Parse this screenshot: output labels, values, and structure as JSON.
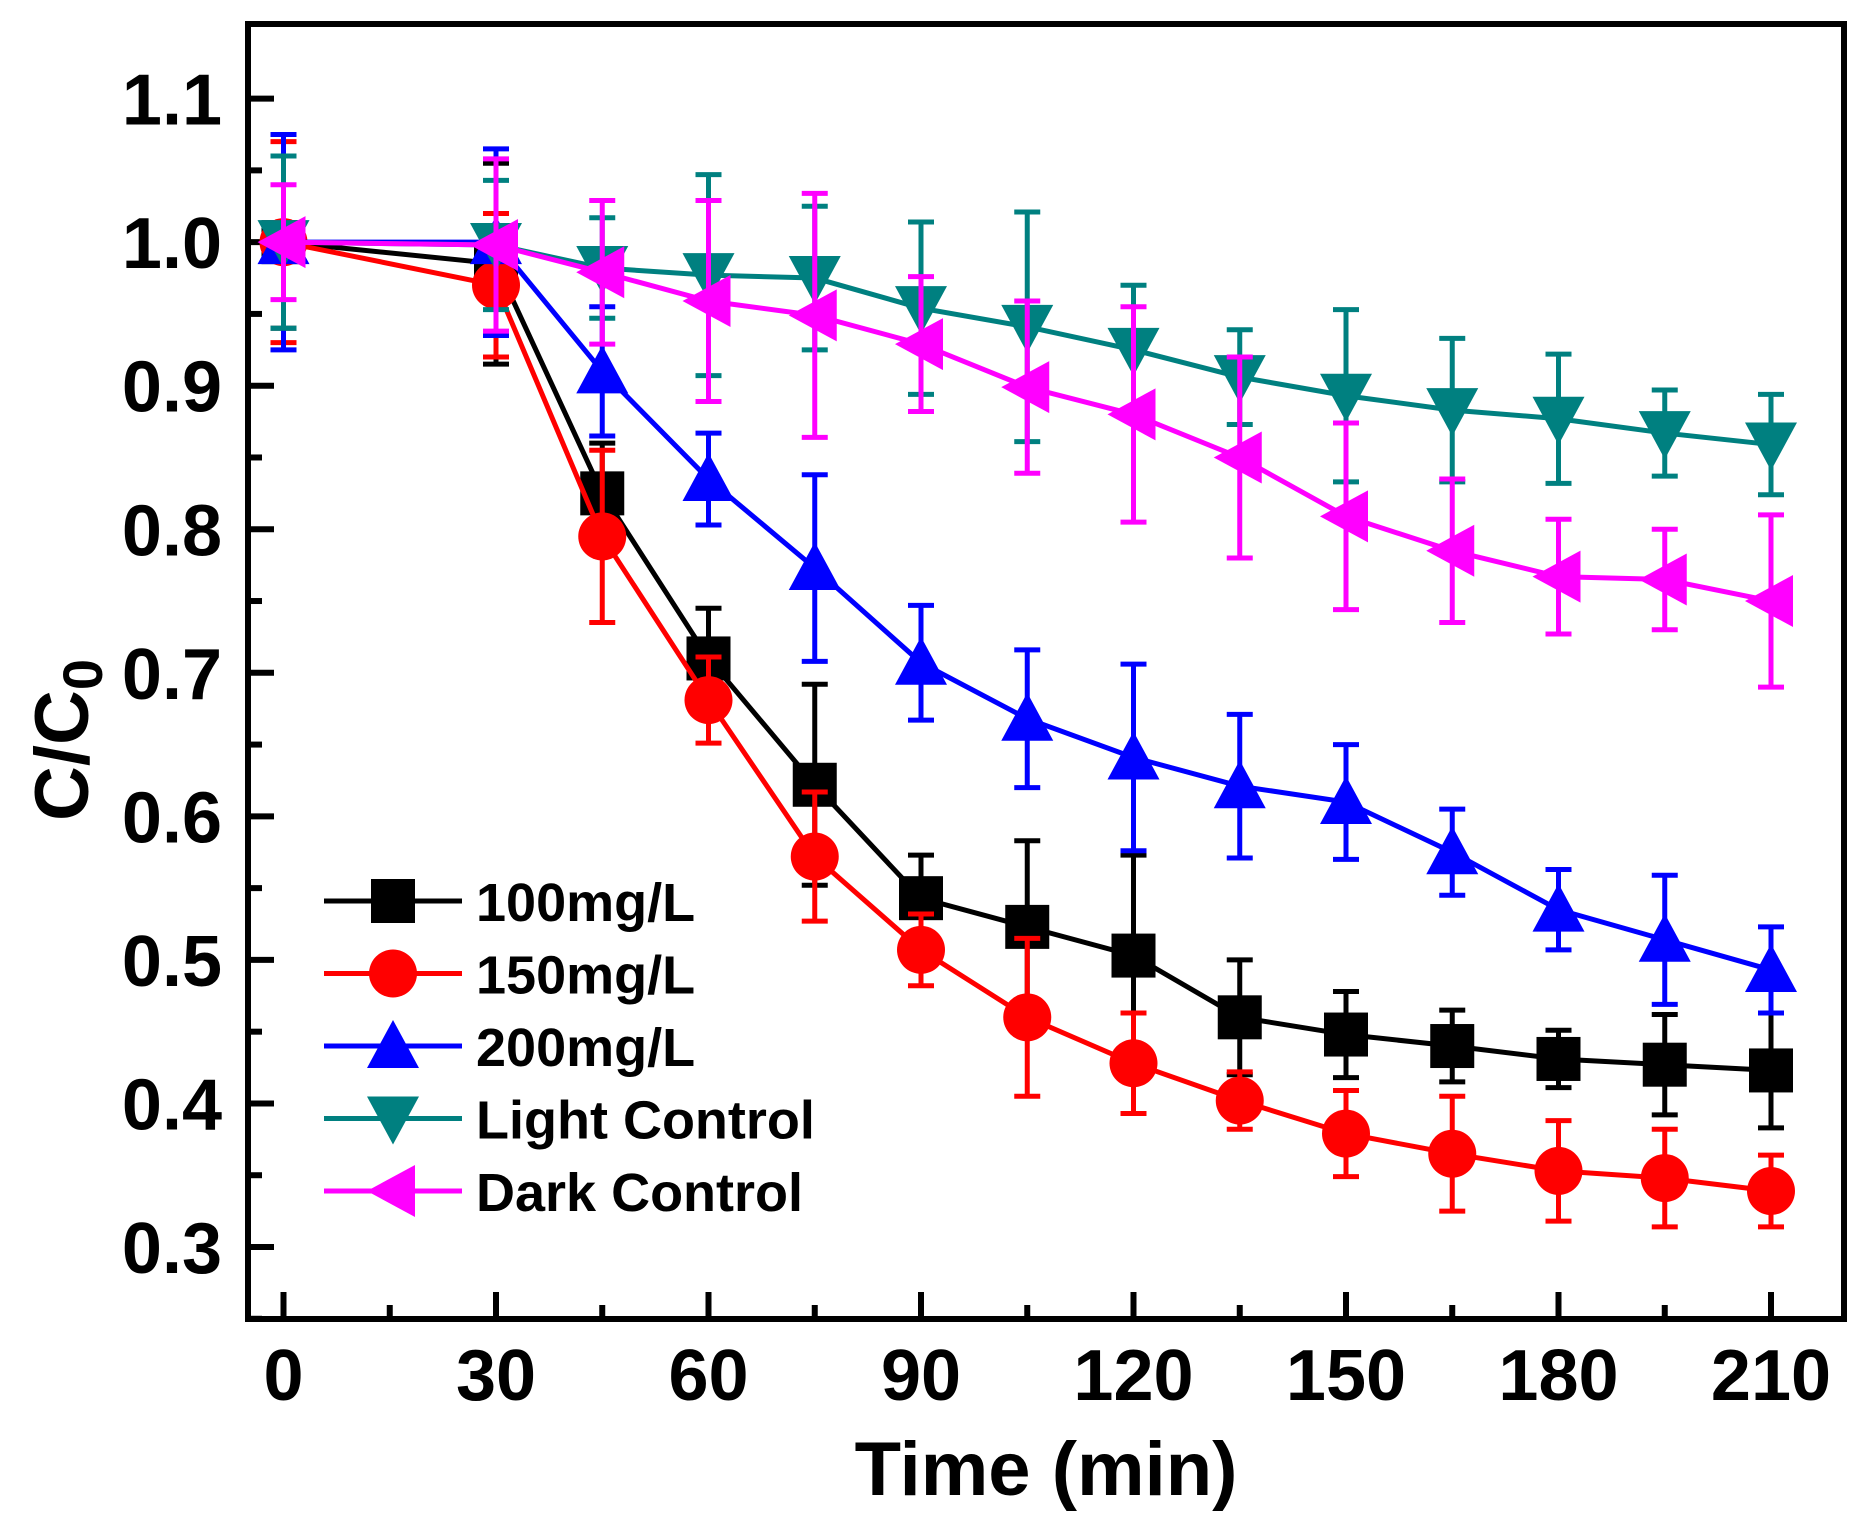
{
  "chart_data": {
    "type": "line",
    "title": "",
    "xlabel": "Time (min)",
    "ylabel_main": "C/C",
    "ylabel_sub": "0",
    "xlim": [
      -5,
      220
    ],
    "ylim": [
      0.25,
      1.14
    ],
    "xticks": [
      0,
      30,
      60,
      90,
      120,
      150,
      180,
      210
    ],
    "xtick_labels": [
      "0",
      "30",
      "60",
      "90",
      "120",
      "150",
      "180",
      "210"
    ],
    "yticks": [
      0.3,
      0.4,
      0.5,
      0.6,
      0.7,
      0.8,
      0.9,
      1.0,
      1.1
    ],
    "ytick_labels": [
      "0.3",
      "0.4",
      "0.5",
      "0.6",
      "0.7",
      "0.8",
      "0.9",
      "1.0",
      "1.1"
    ],
    "grid": false,
    "legend_position": "bottom-left",
    "x": [
      0,
      30,
      45,
      60,
      75,
      90,
      105,
      120,
      135,
      150,
      165,
      180,
      195,
      210
    ],
    "series": [
      {
        "name": "100mg/L",
        "color": "#000000",
        "marker": "square",
        "values": [
          1.0,
          0.985,
          0.825,
          0.71,
          0.622,
          0.543,
          0.523,
          0.503,
          0.46,
          0.448,
          0.44,
          0.431,
          0.427,
          0.423
        ],
        "errors": [
          0.06,
          0.07,
          0.035,
          0.035,
          0.07,
          0.03,
          0.06,
          0.07,
          0.04,
          0.03,
          0.025,
          0.02,
          0.035,
          0.04
        ]
      },
      {
        "name": "150mg/L",
        "color": "#ff0000",
        "marker": "circle",
        "values": [
          1.0,
          0.97,
          0.795,
          0.681,
          0.572,
          0.507,
          0.46,
          0.428,
          0.402,
          0.379,
          0.365,
          0.353,
          0.348,
          0.339
        ],
        "errors": [
          0.07,
          0.05,
          0.06,
          0.03,
          0.045,
          0.025,
          0.055,
          0.035,
          0.02,
          0.03,
          0.04,
          0.035,
          0.034,
          0.025
        ]
      },
      {
        "name": "200mg/L",
        "color": "#0000ff",
        "marker": "triangle-up",
        "values": [
          1.0,
          1.0,
          0.91,
          0.835,
          0.773,
          0.707,
          0.668,
          0.641,
          0.621,
          0.61,
          0.575,
          0.535,
          0.514,
          0.493
        ],
        "errors": [
          0.075,
          0.065,
          0.045,
          0.032,
          0.065,
          0.04,
          0.048,
          0.065,
          0.05,
          0.04,
          0.03,
          0.028,
          0.045,
          0.03
        ]
      },
      {
        "name": "Light Control",
        "color": "#008080",
        "marker": "triangle-down",
        "values": [
          1.0,
          0.998,
          0.982,
          0.977,
          0.975,
          0.954,
          0.941,
          0.925,
          0.906,
          0.893,
          0.883,
          0.877,
          0.867,
          0.859
        ],
        "errors": [
          0.06,
          0.045,
          0.035,
          0.07,
          0.05,
          0.06,
          0.08,
          0.045,
          0.033,
          0.06,
          0.05,
          0.045,
          0.03,
          0.035
        ]
      },
      {
        "name": "Dark Control",
        "color": "#ff00ff",
        "marker": "triangle-left",
        "values": [
          1.0,
          0.998,
          0.979,
          0.959,
          0.949,
          0.929,
          0.899,
          0.88,
          0.85,
          0.809,
          0.785,
          0.767,
          0.765,
          0.75
        ],
        "errors": [
          0.04,
          0.06,
          0.05,
          0.07,
          0.085,
          0.047,
          0.06,
          0.075,
          0.07,
          0.065,
          0.05,
          0.04,
          0.035,
          0.06
        ]
      }
    ]
  }
}
